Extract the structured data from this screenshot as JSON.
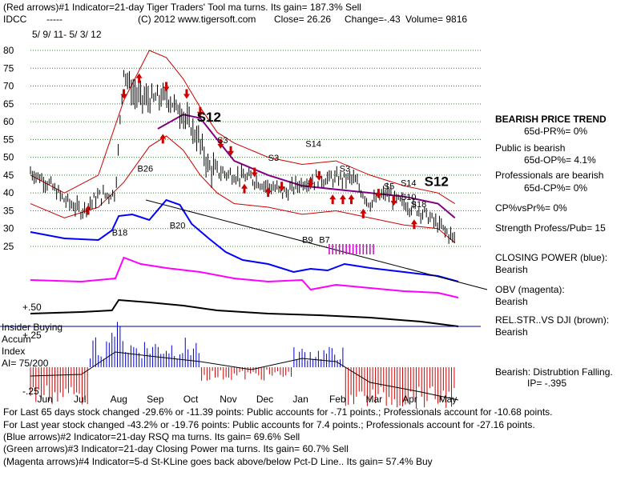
{
  "header": {
    "line1": "(Red arrows)#1 Indicator=21-day Tiger Traders' Tool ma turns. Its gain= 187.3% Sell",
    "symbol": "IDCC",
    "dashes": "-----",
    "copyright": "(C) 2012 www.tigersoft.com",
    "close": "Close= 26.26",
    "change": "Change=-.43",
    "volume": "Volume= 9816",
    "date_range": "5/ 9/ 11- 5/ 3/ 12"
  },
  "panel": {
    "trend_title": "BEARISH PRICE TREND",
    "pr": "65d-PR%= 0%",
    "public": "Public is bearish",
    "op": "65d-OP%= 4.1%",
    "pros": "Professionals are bearish",
    "cp": "65d-CP%= 0%",
    "cpvspr": "CP%vsPr%= 0%",
    "strength": "Strength Profess/Pub= 15",
    "closing_power": "CLOSING POWER (blue):",
    "closing_power_val": "Bearish",
    "obv": "OBV (magenta):",
    "obv_val": "Bearish",
    "relstr": "REL.STR..VS DJI (brown):",
    "relstr_val": "Bearish",
    "insider": "Insider Buying",
    "accum": "Accum",
    "index": "Index",
    "ai": "AI= 75/200",
    "distribution": "Bearish: Distrubtion Falling.",
    "ip": "IP= -.395"
  },
  "footer": {
    "line1": "For Last 65 days stock changed -29.6% or -11.39 points:  Public accounts for -.71 points.;  Professionals account for -10.68 points.",
    "line2": "For Last year stock changed -43.2% or -19.76 points:  Public accounts for  7.4 points.;  Professionals account for -27.16 points.",
    "line3": "(Blue arrows)#2 Indicator=21-day RSQ ma turns. Its gain= 69.6% Sell",
    "line4": "(Green arrows)#3 Indicator=21-day Closing Power ma turns. Its gain= 60.7% Sell",
    "line5": "(Magenta arrows)#4 Indicator=5-d St-KLine goes back above/below Pct-D Line.. Its gain= 57.4% Buy"
  },
  "chart_data": {
    "type": "line",
    "title": "IDCC 5/ 9/ 11- 5/ 3/ 12",
    "ylim": [
      25,
      80
    ],
    "y_ticks": [
      "80",
      "75",
      "70",
      "65",
      "60",
      "55",
      "50",
      "45",
      "40",
      "35",
      "30",
      "25"
    ],
    "x_ticks": [
      "Jun",
      "Jul",
      "Aug",
      "Sep",
      "Oct",
      "Nov",
      "Dec",
      "Jan",
      "Feb",
      "Mar",
      "Apr",
      "May"
    ],
    "accum_ticks": [
      "+.50",
      "+.25",
      "-.25"
    ],
    "series": [
      {
        "name": "price",
        "color": "#000000",
        "x": [
          0,
          10,
          20,
          30,
          40,
          50,
          55,
          60,
          70,
          80,
          90,
          100,
          105,
          110,
          120,
          130,
          140,
          150,
          160,
          170,
          180,
          190,
          200,
          210,
          215,
          220,
          230,
          240,
          250
        ],
        "values": [
          46,
          43,
          38,
          35,
          39,
          40,
          75,
          68,
          66,
          67,
          62,
          54,
          47,
          46,
          45,
          44,
          42,
          40,
          43,
          44,
          44,
          44,
          37,
          40,
          38,
          37,
          35,
          31,
          27
        ]
      },
      {
        "name": "21-day ma",
        "color": "#800080",
        "x": [
          75,
          90,
          100,
          110,
          120,
          140,
          160,
          180,
          200,
          220,
          240,
          250
        ],
        "values": [
          58,
          62,
          61,
          55,
          49,
          45,
          42,
          41,
          40,
          39,
          37,
          33
        ]
      },
      {
        "name": "upper band",
        "color": "#cc0000",
        "x": [
          0,
          20,
          40,
          55,
          70,
          80,
          90,
          100,
          110,
          120,
          140,
          160,
          180,
          200,
          220,
          240,
          250
        ],
        "values": [
          45,
          40,
          45,
          66,
          80,
          78,
          72,
          64,
          57,
          54,
          50,
          48,
          49,
          45,
          42,
          40,
          37
        ]
      },
      {
        "name": "lower band",
        "color": "#cc0000",
        "x": [
          0,
          20,
          40,
          55,
          70,
          80,
          90,
          100,
          110,
          120,
          140,
          160,
          180,
          200,
          220,
          240,
          250
        ],
        "values": [
          37,
          33,
          36,
          43,
          53,
          56,
          52,
          45,
          40,
          37,
          36,
          34,
          35,
          33,
          31,
          30,
          26
        ]
      }
    ],
    "annotations": [
      {
        "label": "S12",
        "color": "#000000",
        "x": 98,
        "y": 60
      },
      {
        "label": "S3",
        "color": "#000000",
        "x": 110,
        "y": 54
      },
      {
        "label": "S3",
        "color": "#000000",
        "x": 140,
        "y": 49
      },
      {
        "label": "S14",
        "color": "#000000",
        "x": 162,
        "y": 53
      },
      {
        "label": "S3",
        "color": "#000000",
        "x": 182,
        "y": 46
      },
      {
        "label": "S5",
        "color": "#000000",
        "x": 208,
        "y": 41
      },
      {
        "label": "S14",
        "color": "#000000",
        "x": 218,
        "y": 42
      },
      {
        "label": "S12",
        "color": "#000000",
        "x": 232,
        "y": 42
      },
      {
        "label": "S10",
        "color": "#000000",
        "x": 218,
        "y": 38
      },
      {
        "label": "S18",
        "color": "#000000",
        "x": 224,
        "y": 36
      },
      {
        "label": "B26",
        "color": "#000000",
        "x": 63,
        "y": 46
      },
      {
        "label": "B18",
        "color": "#000000",
        "x": 48,
        "y": 28
      },
      {
        "label": "B20",
        "color": "#000000",
        "x": 82,
        "y": 30
      },
      {
        "label": "B9",
        "color": "#000000",
        "x": 160,
        "y": 26
      },
      {
        "label": "B7",
        "color": "#000000",
        "x": 170,
        "y": 26
      }
    ]
  }
}
